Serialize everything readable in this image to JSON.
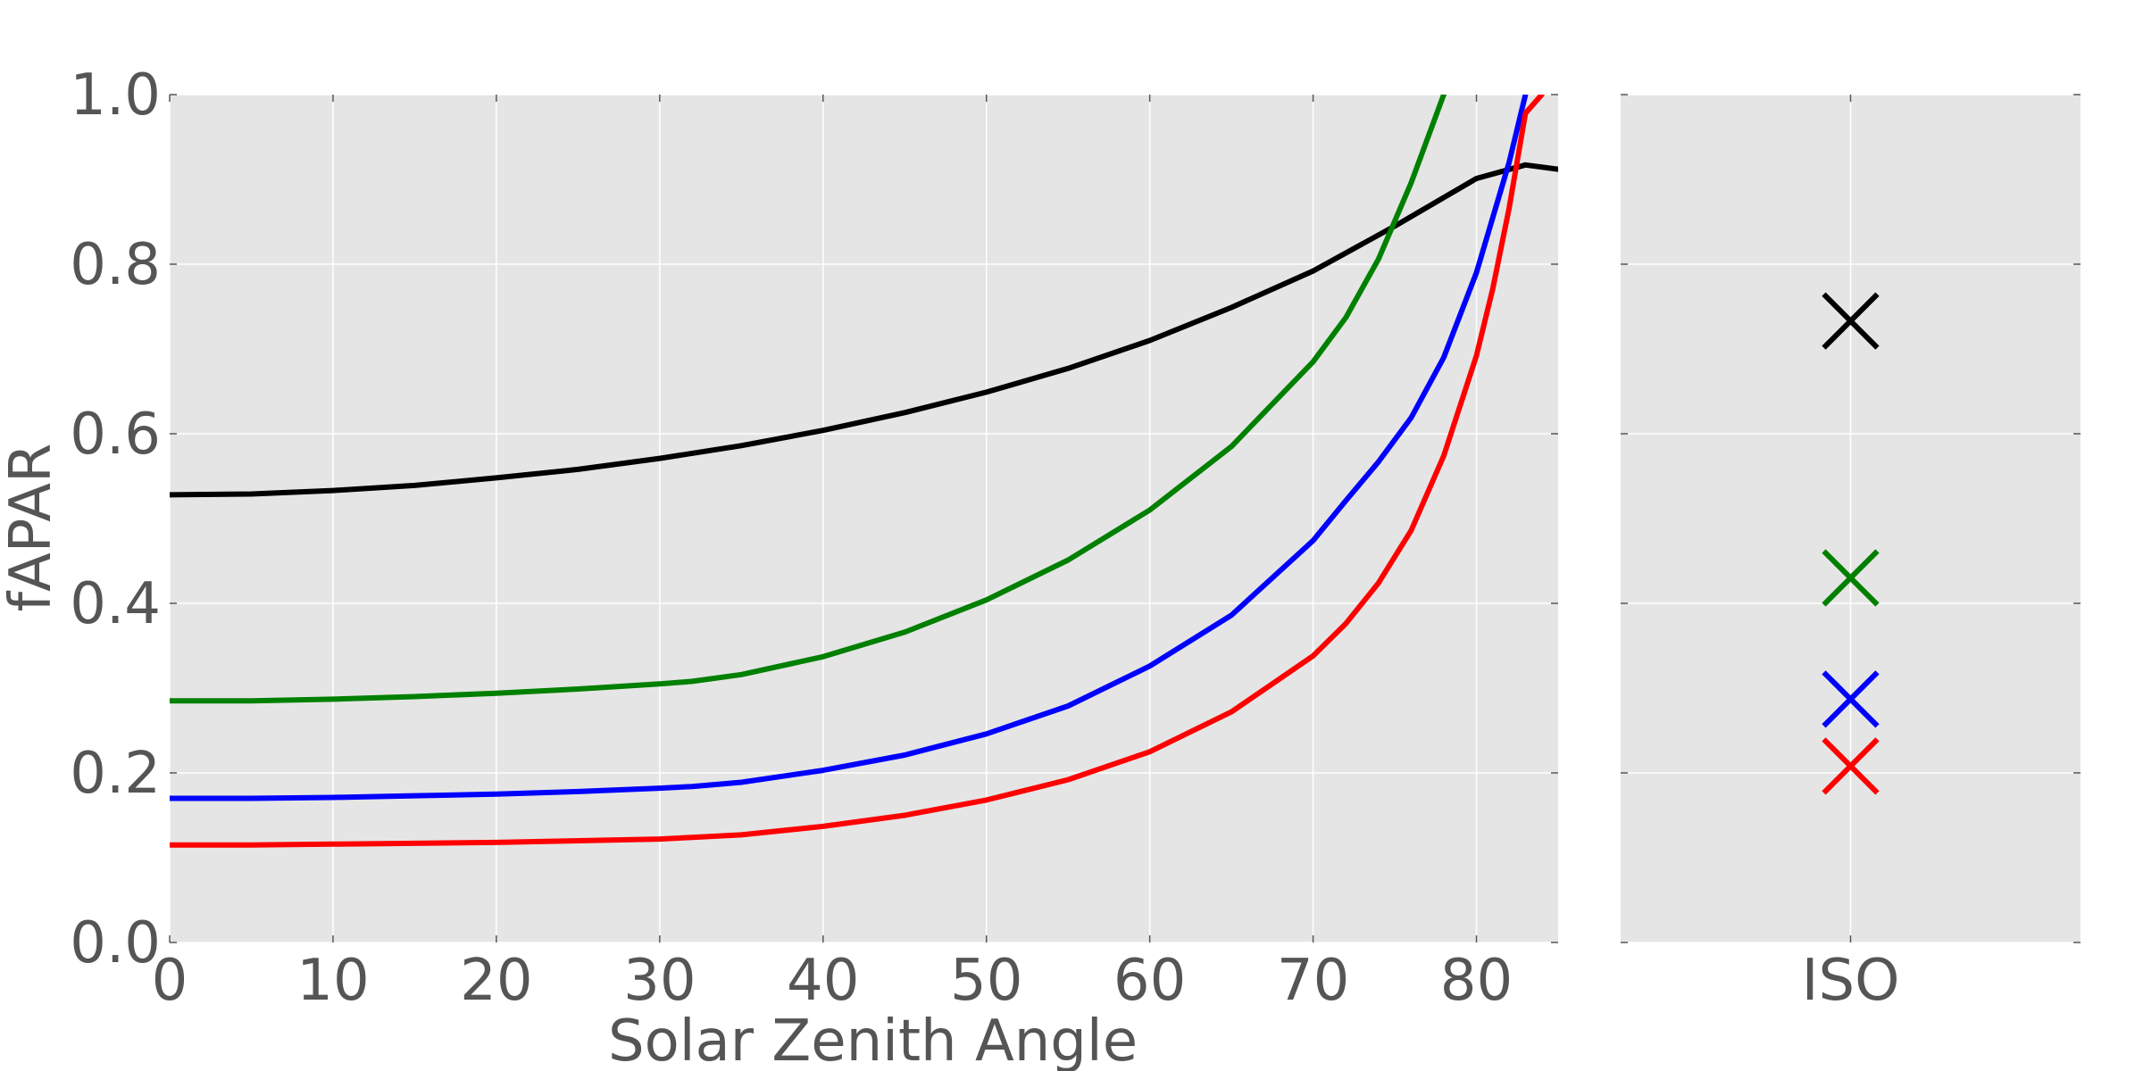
{
  "chart_data": [
    {
      "type": "line",
      "title": "",
      "xlabel": "Solar Zenith Angle",
      "ylabel": "fAPAR",
      "xlim": [
        0,
        85
      ],
      "ylim": [
        0,
        1
      ],
      "xticks": [
        0,
        10,
        20,
        30,
        40,
        50,
        60,
        70,
        80
      ],
      "yticks": [
        "0.0",
        "0.2",
        "0.4",
        "0.6",
        "0.8",
        "1.0"
      ],
      "grid": true,
      "background": "#e5e5e5",
      "legend": "none",
      "series": [
        {
          "color": "#000000",
          "x": [
            0,
            5,
            10,
            15,
            20,
            25,
            30,
            35,
            40,
            45,
            50,
            55,
            60,
            65,
            70,
            75,
            80,
            83,
            85
          ],
          "y": [
            0.528,
            0.529,
            0.533,
            0.539,
            0.548,
            0.558,
            0.571,
            0.586,
            0.604,
            0.625,
            0.649,
            0.677,
            0.71,
            0.749,
            0.792,
            0.845,
            0.901,
            0.917,
            0.912
          ]
        },
        {
          "color": "#008000",
          "x": [
            0,
            5,
            10,
            15,
            20,
            25,
            30,
            32,
            35,
            40,
            45,
            50,
            55,
            60,
            65,
            70,
            72,
            74,
            76,
            78
          ],
          "y": [
            0.285,
            0.285,
            0.287,
            0.29,
            0.294,
            0.299,
            0.305,
            0.308,
            0.316,
            0.337,
            0.366,
            0.404,
            0.451,
            0.51,
            0.585,
            0.685,
            0.737,
            0.806,
            0.896,
            1.0
          ]
        },
        {
          "color": "#0000ff",
          "x": [
            0,
            5,
            10,
            15,
            20,
            25,
            30,
            32,
            35,
            40,
            45,
            50,
            55,
            60,
            65,
            70,
            72,
            74,
            76,
            78,
            80,
            82,
            83
          ],
          "y": [
            0.17,
            0.17,
            0.171,
            0.173,
            0.175,
            0.178,
            0.182,
            0.184,
            0.189,
            0.203,
            0.221,
            0.246,
            0.279,
            0.326,
            0.386,
            0.474,
            0.521,
            0.567,
            0.619,
            0.69,
            0.79,
            0.92,
            1.0
          ]
        },
        {
          "color": "#ff0000",
          "x": [
            0,
            5,
            10,
            15,
            20,
            25,
            30,
            32,
            35,
            40,
            45,
            50,
            55,
            60,
            65,
            70,
            72,
            74,
            76,
            78,
            80,
            81,
            82,
            83,
            84
          ],
          "y": [
            0.115,
            0.115,
            0.116,
            0.117,
            0.118,
            0.12,
            0.122,
            0.124,
            0.127,
            0.137,
            0.15,
            0.168,
            0.192,
            0.225,
            0.272,
            0.338,
            0.376,
            0.424,
            0.486,
            0.574,
            0.692,
            0.771,
            0.866,
            0.978,
            1.0
          ]
        }
      ]
    },
    {
      "type": "scatter",
      "title": "",
      "xlabel": "",
      "ylabel": "",
      "categories": [
        "ISO"
      ],
      "ylim": [
        0,
        1
      ],
      "grid": true,
      "background": "#e5e5e5",
      "marker": "x",
      "series": [
        {
          "color": "#000000",
          "values": [
            0.733
          ]
        },
        {
          "color": "#008000",
          "values": [
            0.43
          ]
        },
        {
          "color": "#0000ff",
          "values": [
            0.287
          ]
        },
        {
          "color": "#ff0000",
          "values": [
            0.208
          ]
        }
      ]
    }
  ]
}
